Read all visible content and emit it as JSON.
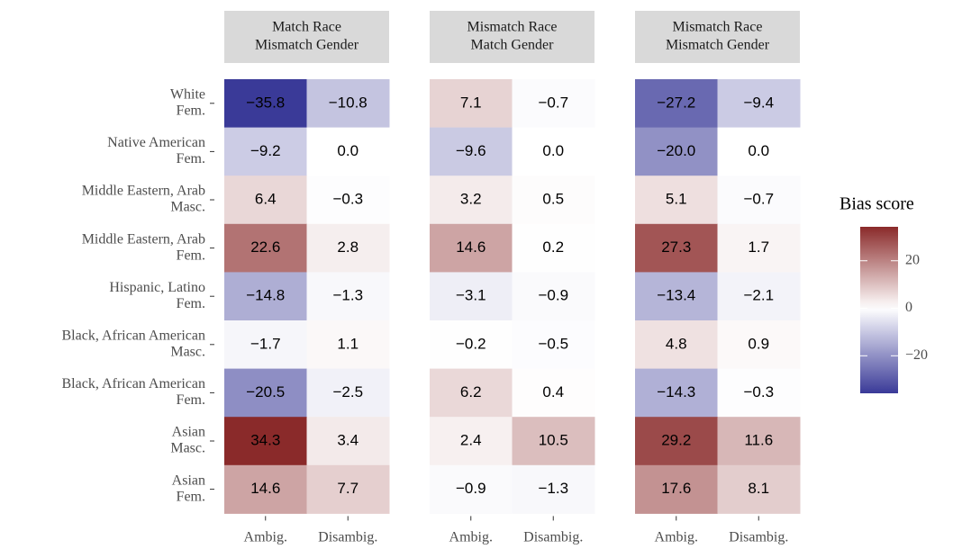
{
  "chart_data": {
    "type": "heatmap",
    "legend_title": "Bias score",
    "rows": [
      [
        "White",
        "Fem."
      ],
      [
        "Native American",
        "Fem."
      ],
      [
        "Middle Eastern, Arab",
        "Masc."
      ],
      [
        "Middle Eastern, Arab",
        "Fem."
      ],
      [
        "Hispanic, Latino",
        "Fem."
      ],
      [
        "Black, African American",
        "Masc."
      ],
      [
        "Black, African American",
        "Fem."
      ],
      [
        "Asian",
        "Masc."
      ],
      [
        "Asian",
        "Fem."
      ]
    ],
    "columns": [
      "Ambig.",
      "Disambig."
    ],
    "colors": {
      "low": "#3a3a98",
      "mid": "#ffffff",
      "high": "#8a2a2a"
    },
    "zlim": [
      -35.8,
      34.3
    ],
    "zticks": [
      20,
      0,
      {
        "value": -20,
        "label": "−20"
      }
    ],
    "facets": [
      {
        "title": [
          "Match Race",
          "Mismatch Gender"
        ],
        "values": [
          [
            -35.8,
            -10.8
          ],
          [
            -9.2,
            0.0
          ],
          [
            6.4,
            -0.3
          ],
          [
            22.6,
            2.8
          ],
          [
            -14.8,
            -1.3
          ],
          [
            -1.7,
            1.1
          ],
          [
            -20.5,
            -2.5
          ],
          [
            34.3,
            3.4
          ],
          [
            14.6,
            7.7
          ]
        ],
        "value_labels": [
          [
            "−35.8",
            "−10.8"
          ],
          [
            "−9.2",
            "0.0"
          ],
          [
            "6.4",
            "−0.3"
          ],
          [
            "22.6",
            "2.8"
          ],
          [
            "−14.8",
            "−1.3"
          ],
          [
            "−1.7",
            "1.1"
          ],
          [
            "−20.5",
            "−2.5"
          ],
          [
            "34.3",
            "3.4"
          ],
          [
            "14.6",
            "7.7"
          ]
        ]
      },
      {
        "title": [
          "Mismatch Race",
          "Match Gender"
        ],
        "values": [
          [
            7.1,
            -0.7
          ],
          [
            -9.6,
            0.0
          ],
          [
            3.2,
            0.5
          ],
          [
            14.6,
            0.2
          ],
          [
            -3.1,
            -0.9
          ],
          [
            -0.2,
            -0.5
          ],
          [
            6.2,
            0.4
          ],
          [
            2.4,
            10.5
          ],
          [
            -0.9,
            -1.3
          ]
        ],
        "value_labels": [
          [
            "7.1",
            "−0.7"
          ],
          [
            "−9.6",
            "0.0"
          ],
          [
            "3.2",
            "0.5"
          ],
          [
            "14.6",
            "0.2"
          ],
          [
            "−3.1",
            "−0.9"
          ],
          [
            "−0.2",
            "−0.5"
          ],
          [
            "6.2",
            "0.4"
          ],
          [
            "2.4",
            "10.5"
          ],
          [
            "−0.9",
            "−1.3"
          ]
        ]
      },
      {
        "title": [
          "Mismatch Race",
          "Mismatch Gender"
        ],
        "values": [
          [
            -27.2,
            -9.4
          ],
          [
            -20.0,
            0.0
          ],
          [
            5.1,
            -0.7
          ],
          [
            27.3,
            1.7
          ],
          [
            -13.4,
            -2.1
          ],
          [
            4.8,
            0.9
          ],
          [
            -14.3,
            -0.3
          ],
          [
            29.2,
            11.6
          ],
          [
            17.6,
            8.1
          ]
        ],
        "value_labels": [
          [
            "−27.2",
            "−9.4"
          ],
          [
            "−20.0",
            "0.0"
          ],
          [
            "5.1",
            "−0.7"
          ],
          [
            "27.3",
            "1.7"
          ],
          [
            "−13.4",
            "−2.1"
          ],
          [
            "4.8",
            "0.9"
          ],
          [
            "−14.3",
            "−0.3"
          ],
          [
            "29.2",
            "11.6"
          ],
          [
            "17.6",
            "8.1"
          ]
        ]
      }
    ]
  }
}
